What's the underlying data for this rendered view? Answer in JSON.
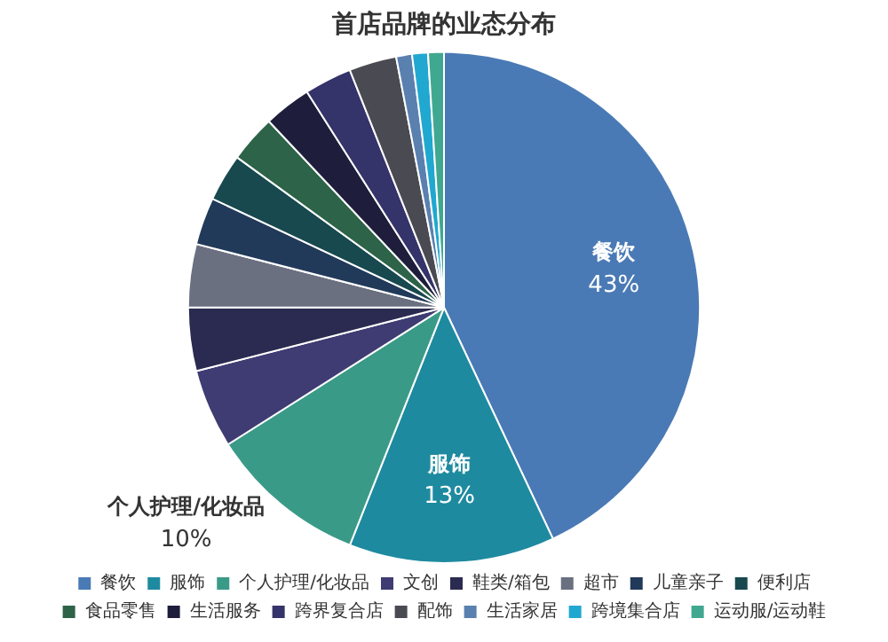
{
  "chart_data": {
    "type": "pie",
    "title": "首店品牌的业态分布",
    "categories": [
      "餐饮",
      "服饰",
      "个人护理/化妆品",
      "文创",
      "鞋类/箱包",
      "超市",
      "儿童亲子",
      "便利店",
      "食品零售",
      "生活服务",
      "跨界复合店",
      "配饰",
      "生活家居",
      "跨境集合店",
      "运动服/运动鞋"
    ],
    "values": [
      43,
      13,
      10,
      5,
      4,
      4,
      3,
      3,
      3,
      3,
      3,
      3,
      1,
      1,
      1
    ],
    "colors": [
      "#4a7ab5",
      "#1e8aa0",
      "#3a9a88",
      "#3e3c72",
      "#2b2a50",
      "#6a7080",
      "#223a5a",
      "#17494f",
      "#2d6348",
      "#1e1e3c",
      "#34336a",
      "#4a4a52",
      "#5a80b0",
      "#20a8d0",
      "#40a890"
    ],
    "value_labels": [
      "43%",
      "13%",
      "10%",
      null,
      null,
      null,
      null,
      null,
      null,
      null,
      null,
      null,
      null,
      null,
      null
    ],
    "legend": "bottom"
  }
}
